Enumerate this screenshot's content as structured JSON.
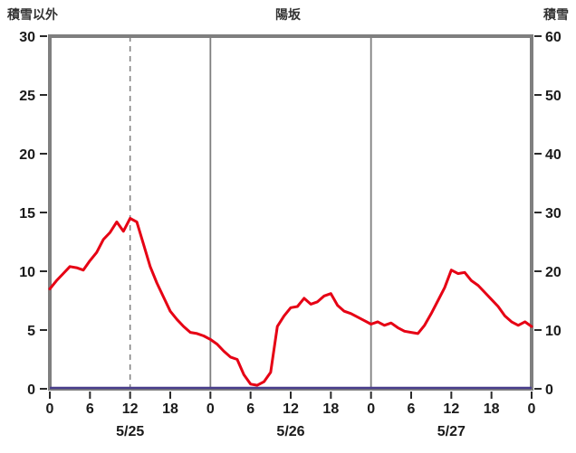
{
  "header": {
    "left_axis_title": "積雪以外",
    "chart_title": "陽坂",
    "right_axis_title": "積雪"
  },
  "colors": {
    "frame": "#7f7f7f",
    "grid": "#7f7f7f",
    "tick": "#2a2a2a",
    "text": "#1a1a1a"
  },
  "chart_data": {
    "type": "line",
    "title": "陽坂",
    "x": {
      "unit": "hour",
      "start_hour": 0,
      "end_hour": 72,
      "tick_step_hours": 6,
      "tick_labels": [
        "0",
        "6",
        "12",
        "18",
        "0",
        "6",
        "12",
        "18",
        "0",
        "6",
        "12",
        "18",
        "0"
      ],
      "date_labels": [
        "5/25",
        "5/26",
        "5/27"
      ],
      "date_label_center_hours": [
        12,
        36,
        60
      ]
    },
    "left_axis": {
      "title": "積雪以外",
      "min": 0,
      "max": 30,
      "ticks": [
        0,
        5,
        10,
        15,
        20,
        25,
        30
      ]
    },
    "right_axis": {
      "title": "積雪",
      "min": 0,
      "max": 60,
      "ticks": [
        0,
        10,
        20,
        30,
        40,
        50,
        60
      ]
    },
    "gridlines": {
      "solid_at_hours": [
        24,
        48
      ],
      "dashed_at_hours": [
        12
      ]
    },
    "series": [
      {
        "name": "積雪以外",
        "axis": "left",
        "color": "#e60014",
        "x_step_hours": 1,
        "values": [
          8.5,
          9.2,
          9.8,
          10.4,
          10.3,
          10.1,
          10.9,
          11.6,
          12.7,
          13.3,
          14.2,
          13.4,
          14.5,
          14.2,
          12.3,
          10.4,
          9.0,
          7.8,
          6.6,
          5.9,
          5.3,
          4.8,
          4.7,
          4.5,
          4.2,
          3.8,
          3.2,
          2.7,
          2.5,
          1.2,
          0.4,
          0.3,
          0.6,
          1.4,
          5.3,
          6.2,
          6.9,
          7.0,
          7.7,
          7.2,
          7.4,
          7.9,
          8.1,
          7.1,
          6.6,
          6.4,
          6.1,
          5.8,
          5.5,
          5.7,
          5.4,
          5.6,
          5.2,
          4.9,
          4.8,
          4.7,
          5.4,
          6.4,
          7.5,
          8.6,
          10.1,
          9.8,
          9.9,
          9.2,
          8.8,
          8.2,
          7.6,
          7.0,
          6.2,
          5.7,
          5.4,
          5.7,
          5.3
        ]
      },
      {
        "name": "積雪",
        "axis": "right",
        "color": "#483d8b",
        "constant_value": 0
      }
    ]
  }
}
